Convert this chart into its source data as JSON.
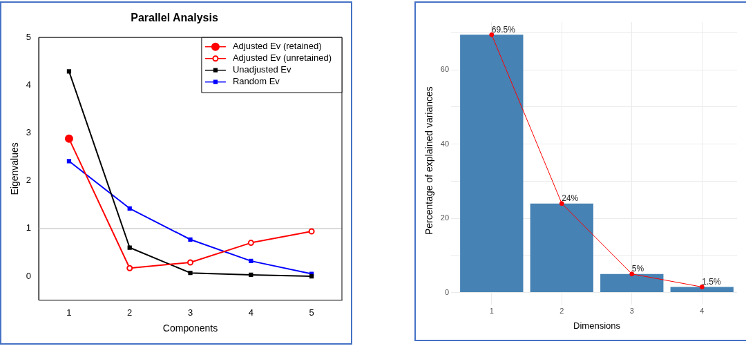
{
  "chart_data": [
    {
      "type": "line",
      "title": "Parallel Analysis",
      "xlabel": "Components",
      "ylabel": "Eigenvalues",
      "x": [
        1,
        2,
        3,
        4,
        5
      ],
      "xlim": [
        0.5,
        5.5
      ],
      "xticks": [
        1,
        2,
        3,
        4,
        5
      ],
      "ylim": [
        -0.5,
        5
      ],
      "yticks": [
        0,
        1,
        2,
        3,
        4,
        5
      ],
      "grid": false,
      "legend": "top right",
      "ref_lines": [
        {
          "axis": "y",
          "value": 1,
          "color": "#d3d3d3"
        }
      ],
      "series": [
        {
          "name": "Adjusted Ev (retained)",
          "color": "#ff0000",
          "marker": "circle",
          "x": [
            1
          ],
          "values": [
            2.88
          ]
        },
        {
          "name": "Adjusted Ev (unretained)",
          "color": "#ff0000",
          "marker": "circle",
          "values": [
            2.88,
            0.17,
            0.29,
            0.7,
            0.94
          ]
        },
        {
          "name": "Unadjusted Ev",
          "color": "#000000",
          "marker": "square",
          "values": [
            4.29,
            0.6,
            0.07,
            0.03,
            0.0
          ]
        },
        {
          "name": "Random Ev",
          "color": "#0000ff",
          "marker": "square",
          "values": [
            2.41,
            1.42,
            0.77,
            0.32,
            0.05
          ]
        }
      ]
    },
    {
      "type": "bar",
      "xlabel": "Dimensions",
      "ylabel": "Percentage of explained variances",
      "categories": [
        "1",
        "2",
        "3",
        "4"
      ],
      "ylim": [
        -1.8,
        72.9
      ],
      "yticks": [
        0,
        {
          "value": 10,
          "label": null
        },
        20,
        {
          "value": 30,
          "label": null
        },
        40,
        {
          "value": 50,
          "label": null
        },
        60,
        {
          "value": 70,
          "label": null
        }
      ],
      "grid": true,
      "legend": false,
      "series": [
        {
          "color": "#4682b4",
          "values": [
            69.5,
            24,
            5,
            1.5
          ],
          "value_labels": [
            "69.5%",
            "24%",
            "5%",
            "1.5%"
          ]
        },
        {
          "type": "line",
          "color": "#ff0000",
          "marker": "circle",
          "values": [
            69.5,
            24,
            5,
            1.5
          ]
        }
      ]
    }
  ]
}
